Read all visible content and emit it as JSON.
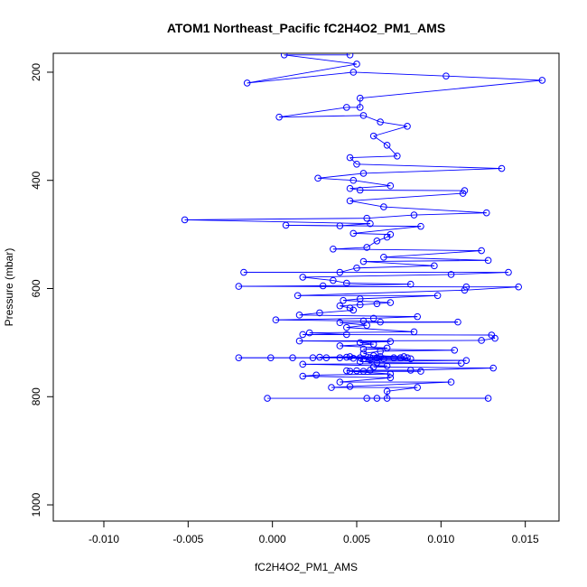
{
  "chart_data": {
    "type": "line",
    "title": "ATOM1 Northeast_Pacific fC2H4O2_PM1_AMS",
    "xlabel": "fC2H4O2_PM1_AMS",
    "ylabel": "Pressure (mbar)",
    "xlim": [
      -0.013,
      0.017
    ],
    "ylim": [
      1030,
      165
    ],
    "y_reversed": true,
    "x_ticks": [
      -0.01,
      -0.005,
      0.0,
      0.005,
      0.01,
      0.015
    ],
    "x_tick_labels": [
      "-0.010",
      "-0.005",
      "0.000",
      "0.005",
      "0.010",
      "0.015"
    ],
    "y_ticks": [
      200,
      400,
      600,
      800,
      1000
    ],
    "y_tick_labels": [
      "200",
      "400",
      "600",
      "800",
      "1000"
    ],
    "grid": false,
    "legend": "none",
    "series_color": "#0000ff",
    "series": [
      {
        "values": [
          {
            "x": -0.0003,
            "y": 803
          },
          {
            "x": 0.0128,
            "y": 803
          },
          {
            "x": 0.0062,
            "y": 803
          },
          {
            "x": 0.0056,
            "y": 803
          },
          {
            "x": 0.0068,
            "y": 803
          },
          {
            "x": 0.0068,
            "y": 790
          },
          {
            "x": 0.0086,
            "y": 783
          },
          {
            "x": 0.0035,
            "y": 783
          },
          {
            "x": 0.0046,
            "y": 781
          },
          {
            "x": 0.0106,
            "y": 773
          },
          {
            "x": 0.004,
            "y": 773
          },
          {
            "x": 0.007,
            "y": 765
          },
          {
            "x": 0.0018,
            "y": 762
          },
          {
            "x": 0.0026,
            "y": 760
          },
          {
            "x": 0.007,
            "y": 758
          },
          {
            "x": 0.0046,
            "y": 753
          },
          {
            "x": 0.0088,
            "y": 753
          },
          {
            "x": 0.0054,
            "y": 753
          },
          {
            "x": 0.0044,
            "y": 752
          },
          {
            "x": 0.005,
            "y": 752
          },
          {
            "x": 0.0058,
            "y": 751
          },
          {
            "x": 0.0082,
            "y": 751
          },
          {
            "x": 0.0131,
            "y": 747
          },
          {
            "x": 0.006,
            "y": 745
          },
          {
            "x": 0.0068,
            "y": 743
          },
          {
            "x": 0.0018,
            "y": 740
          },
          {
            "x": 0.0112,
            "y": 738
          },
          {
            "x": 0.0062,
            "y": 737
          },
          {
            "x": 0.0052,
            "y": 735
          },
          {
            "x": 0.0115,
            "y": 733
          },
          {
            "x": 0.0058,
            "y": 732
          },
          {
            "x": 0.0054,
            "y": 730
          },
          {
            "x": 0.0066,
            "y": 730
          },
          {
            "x": 0.0082,
            "y": 730
          },
          {
            "x": 0.0048,
            "y": 729
          },
          {
            "x": 0.004,
            "y": 728
          },
          {
            "x": -0.002,
            "y": 728
          },
          {
            "x": -0.0001,
            "y": 728
          },
          {
            "x": 0.0012,
            "y": 728
          },
          {
            "x": 0.0024,
            "y": 728
          },
          {
            "x": 0.0032,
            "y": 728
          },
          {
            "x": 0.0052,
            "y": 728
          },
          {
            "x": 0.0058,
            "y": 728
          },
          {
            "x": 0.0062,
            "y": 728
          },
          {
            "x": 0.0072,
            "y": 728
          },
          {
            "x": 0.0076,
            "y": 728
          },
          {
            "x": 0.008,
            "y": 728
          },
          {
            "x": 0.0044,
            "y": 727
          },
          {
            "x": 0.0028,
            "y": 727
          },
          {
            "x": 0.0046,
            "y": 726
          },
          {
            "x": 0.0064,
            "y": 726
          },
          {
            "x": 0.0078,
            "y": 726
          },
          {
            "x": 0.006,
            "y": 724
          },
          {
            "x": 0.0054,
            "y": 720
          },
          {
            "x": 0.0064,
            "y": 716
          },
          {
            "x": 0.0108,
            "y": 714
          },
          {
            "x": 0.0054,
            "y": 712
          },
          {
            "x": 0.0068,
            "y": 710
          },
          {
            "x": 0.004,
            "y": 706
          },
          {
            "x": 0.006,
            "y": 703
          },
          {
            "x": 0.0052,
            "y": 700
          },
          {
            "x": 0.007,
            "y": 698
          },
          {
            "x": 0.0016,
            "y": 697
          },
          {
            "x": 0.0124,
            "y": 696
          },
          {
            "x": 0.0132,
            "y": 692
          },
          {
            "x": 0.013,
            "y": 686
          },
          {
            "x": 0.0018,
            "y": 685
          },
          {
            "x": 0.0044,
            "y": 685
          },
          {
            "x": 0.0022,
            "y": 682
          },
          {
            "x": 0.0084,
            "y": 680
          },
          {
            "x": 0.0044,
            "y": 672
          },
          {
            "x": 0.0056,
            "y": 668
          },
          {
            "x": 0.004,
            "y": 663
          },
          {
            "x": 0.011,
            "y": 662
          },
          {
            "x": 0.0064,
            "y": 662
          },
          {
            "x": 0.0054,
            "y": 660
          },
          {
            "x": 0.0002,
            "y": 658
          },
          {
            "x": 0.006,
            "y": 655
          },
          {
            "x": 0.0086,
            "y": 652
          },
          {
            "x": 0.0016,
            "y": 649
          },
          {
            "x": 0.0028,
            "y": 645
          },
          {
            "x": 0.0048,
            "y": 640
          },
          {
            "x": 0.0046,
            "y": 636
          },
          {
            "x": 0.004,
            "y": 632
          },
          {
            "x": 0.0052,
            "y": 630
          },
          {
            "x": 0.0062,
            "y": 628
          },
          {
            "x": 0.007,
            "y": 626
          },
          {
            "x": 0.0042,
            "y": 622
          },
          {
            "x": 0.0052,
            "y": 619
          },
          {
            "x": 0.0098,
            "y": 613
          },
          {
            "x": 0.0015,
            "y": 613
          },
          {
            "x": 0.0114,
            "y": 603
          },
          {
            "x": 0.0146,
            "y": 597
          },
          {
            "x": 0.0115,
            "y": 597
          },
          {
            "x": -0.002,
            "y": 596
          },
          {
            "x": 0.003,
            "y": 595
          },
          {
            "x": 0.0082,
            "y": 592
          },
          {
            "x": 0.0044,
            "y": 590
          },
          {
            "x": 0.0036,
            "y": 585
          },
          {
            "x": 0.0018,
            "y": 579
          },
          {
            "x": 0.0106,
            "y": 574
          },
          {
            "x": 0.014,
            "y": 570
          },
          {
            "x": -0.0017,
            "y": 570
          },
          {
            "x": 0.004,
            "y": 570
          },
          {
            "x": 0.005,
            "y": 562
          },
          {
            "x": 0.0096,
            "y": 558
          },
          {
            "x": 0.0054,
            "y": 550
          },
          {
            "x": 0.0128,
            "y": 548
          },
          {
            "x": 0.0066,
            "y": 542
          },
          {
            "x": 0.0124,
            "y": 530
          },
          {
            "x": 0.0036,
            "y": 527
          },
          {
            "x": 0.0056,
            "y": 524
          },
          {
            "x": 0.0062,
            "y": 512
          },
          {
            "x": 0.0068,
            "y": 505
          },
          {
            "x": 0.007,
            "y": 500
          },
          {
            "x": 0.0048,
            "y": 498
          },
          {
            "x": 0.0088,
            "y": 485
          },
          {
            "x": 0.0008,
            "y": 483
          },
          {
            "x": 0.004,
            "y": 484
          },
          {
            "x": 0.0058,
            "y": 480
          },
          {
            "x": -0.0052,
            "y": 473
          },
          {
            "x": 0.0056,
            "y": 470
          },
          {
            "x": 0.0084,
            "y": 464
          },
          {
            "x": 0.0127,
            "y": 460
          },
          {
            "x": 0.0066,
            "y": 449
          },
          {
            "x": 0.0046,
            "y": 438
          },
          {
            "x": 0.0113,
            "y": 424
          },
          {
            "x": 0.0114,
            "y": 419
          },
          {
            "x": 0.0052,
            "y": 418
          },
          {
            "x": 0.0046,
            "y": 415
          },
          {
            "x": 0.007,
            "y": 410
          },
          {
            "x": 0.0048,
            "y": 400
          },
          {
            "x": 0.0027,
            "y": 396
          },
          {
            "x": 0.0054,
            "y": 387
          },
          {
            "x": 0.0136,
            "y": 378
          },
          {
            "x": 0.005,
            "y": 370
          },
          {
            "x": 0.0046,
            "y": 358
          },
          {
            "x": 0.0074,
            "y": 355
          },
          {
            "x": 0.0068,
            "y": 335
          },
          {
            "x": 0.006,
            "y": 318
          },
          {
            "x": 0.008,
            "y": 300
          },
          {
            "x": 0.0064,
            "y": 292
          },
          {
            "x": 0.0054,
            "y": 280
          },
          {
            "x": 0.0004,
            "y": 283
          },
          {
            "x": 0.0044,
            "y": 265
          },
          {
            "x": 0.0052,
            "y": 265
          },
          {
            "x": 0.0052,
            "y": 248
          },
          {
            "x": 0.016,
            "y": 215
          },
          {
            "x": 0.0103,
            "y": 207
          },
          {
            "x": 0.0048,
            "y": 200
          },
          {
            "x": -0.0015,
            "y": 220
          },
          {
            "x": 0.005,
            "y": 185
          },
          {
            "x": 0.0007,
            "y": 168
          },
          {
            "x": 0.0046,
            "y": 168
          }
        ]
      }
    ]
  }
}
